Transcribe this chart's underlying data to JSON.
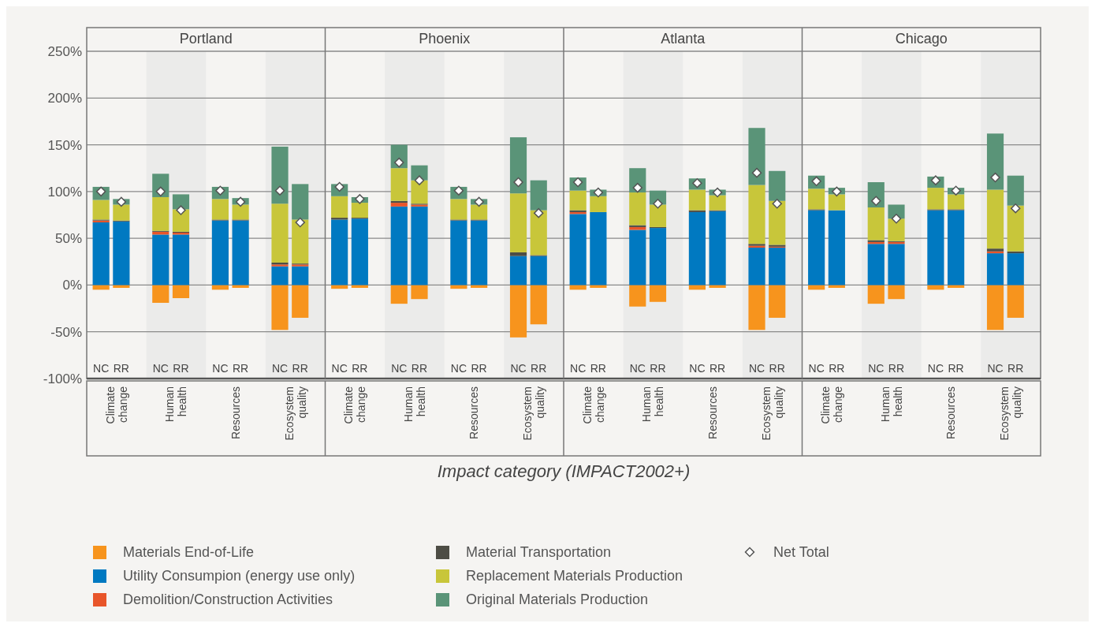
{
  "chart_data": {
    "type": "bar",
    "stacked": true,
    "xlabel": "Impact category (IMPACT2002+)",
    "categories": [
      "NC",
      "RR",
      "NC",
      "RR",
      "NC",
      "RR",
      "NC",
      "RR",
      "NC",
      "RR",
      "NC",
      "RR",
      "NC",
      "RR",
      "NC",
      "RR",
      "NC",
      "RR",
      "NC",
      "RR",
      "NC",
      "RR",
      "NC",
      "RR",
      "NC",
      "RR",
      "NC",
      "RR",
      "NC",
      "RR",
      "NC",
      "RR"
    ],
    "annotations": [
      "Portland",
      "Phoenix",
      "Atlanta",
      "Chicago",
      "Climate change",
      "Human health",
      "Resources",
      "Ecosystem quality",
      "Climate change",
      "Human health",
      "Resources",
      "Ecosystem quality",
      "Climate change",
      "Human health",
      "Resources",
      "Ecosystem quality",
      "Climate change",
      "Human health",
      "Resources",
      "Ecosystem quality"
    ],
    "ylim": [
      -100,
      250
    ],
    "yticks": [
      {
        "value": -100,
        "label": "-100%"
      },
      {
        "value": -50,
        "label": "-50%"
      },
      {
        "value": 0,
        "label": "0%"
      },
      {
        "value": 50,
        "label": "50%"
      },
      {
        "value": 100,
        "label": "100%"
      },
      {
        "value": 150,
        "label": "150%"
      },
      {
        "value": 200,
        "label": "200%"
      },
      {
        "value": 250,
        "label": "250%"
      }
    ],
    "grid": "y",
    "legend": "bottom",
    "marker": "diamond",
    "series": [
      {
        "name": "Materials End-of-Life",
        "color": "#f7941d",
        "values": [
          -5,
          -3,
          -19,
          -14,
          -5,
          -3,
          -48,
          -35,
          -4,
          -3,
          -20,
          -15,
          -4,
          -3,
          -56,
          -42,
          -5,
          -3,
          -23,
          -18,
          -5,
          -3,
          -48,
          -35,
          -5,
          -3,
          -20,
          -15,
          -5,
          -3,
          -48,
          -35
        ]
      },
      {
        "name": "Utility Consumpion (energy use only)",
        "color": "#0079c1",
        "values": [
          67,
          68,
          54,
          54,
          69,
          69,
          20,
          20,
          70,
          71,
          84,
          84,
          69,
          69,
          31,
          31,
          76,
          78,
          59,
          61,
          78,
          79,
          40,
          40,
          80,
          80,
          44,
          44,
          80,
          80,
          34,
          34
        ]
      },
      {
        "name": "Demolition/Construction Activities",
        "color": "#e8552a",
        "values": [
          2,
          0,
          3,
          2,
          0,
          0,
          2,
          2,
          0,
          0,
          4,
          2,
          0,
          0,
          0,
          0,
          2,
          0,
          3,
          0,
          0,
          0,
          2,
          1,
          0,
          0,
          2,
          2,
          0,
          0,
          2,
          0
        ]
      },
      {
        "name": "Material Transportation",
        "color": "#4d4d45",
        "values": [
          1,
          1,
          1,
          1,
          1,
          1,
          2,
          1,
          2,
          1,
          2,
          1,
          1,
          1,
          4,
          1,
          2,
          0,
          2,
          1,
          2,
          1,
          2,
          2,
          1,
          0,
          2,
          1,
          1,
          1,
          3,
          2
        ]
      },
      {
        "name": "Replacement Materials Production",
        "color": "#c8c63a",
        "values": [
          21,
          17,
          36,
          24,
          22,
          16,
          63,
          47,
          23,
          16,
          35,
          25,
          22,
          16,
          63,
          48,
          21,
          17,
          35,
          24,
          22,
          16,
          63,
          47,
          22,
          17,
          35,
          24,
          23,
          16,
          63,
          49
        ]
      },
      {
        "name": "Original Materials Production",
        "color": "#5a9478",
        "values": [
          14,
          6,
          25,
          16,
          13,
          7,
          61,
          38,
          13,
          6,
          25,
          16,
          13,
          6,
          60,
          32,
          14,
          7,
          26,
          15,
          12,
          6,
          61,
          32,
          14,
          7,
          27,
          15,
          12,
          7,
          60,
          32
        ]
      },
      {
        "name": "Net Total",
        "type": "scatter",
        "color": "#ffffff",
        "values": [
          100,
          89,
          100,
          80,
          101,
          89,
          101,
          67,
          105,
          92,
          131,
          112,
          101,
          89,
          110,
          77,
          110,
          99,
          104,
          87,
          109,
          99,
          120,
          87,
          111,
          100,
          90,
          71,
          112,
          101,
          115,
          82
        ]
      }
    ]
  }
}
